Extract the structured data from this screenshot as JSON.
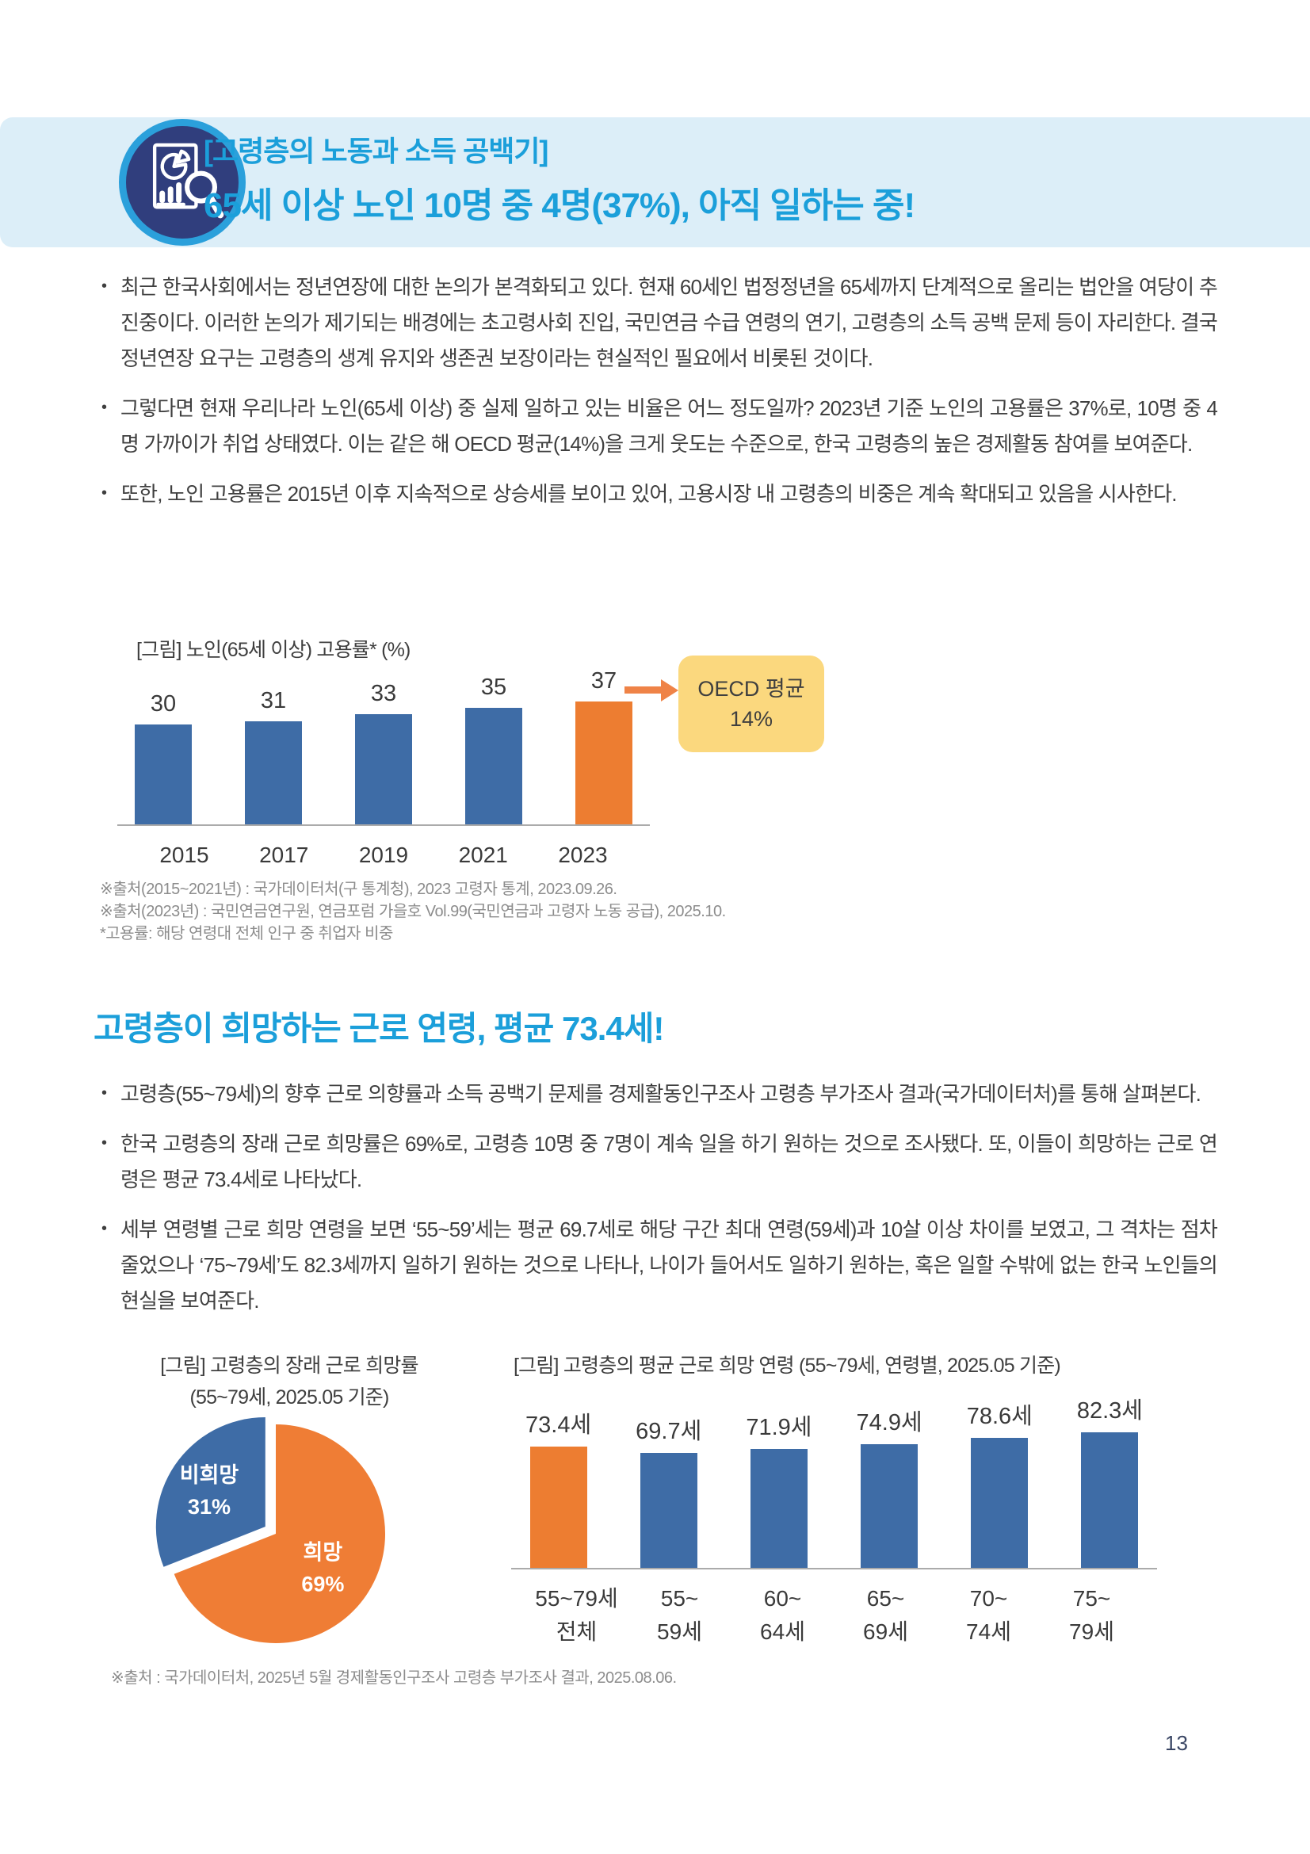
{
  "page": {
    "number": "13"
  },
  "header": {
    "icon": "report-analysis-icon",
    "title_line1": "[고령층의 노동과 소득 공백기]",
    "title_line2": "65세 이상 노인 10명 중 4명(37%), 아직 일하는 중!",
    "band_color": "#dceef8",
    "title_color": "#1b9fda"
  },
  "section1": {
    "bullets": [
      "최근 한국사회에서는 정년연장에 대한 논의가 본격화되고 있다. 현재 60세인 법정정년을 65세까지 단계적으로 올리는 법안을 여당이 추진중이다. 이러한 논의가 제기되는 배경에는 초고령사회 진입, 국민연금 수급 연령의 연기, 고령층의 소득 공백 문제 등이 자리한다. 결국 정년연장 요구는 고령층의 생계 유지와 생존권 보장이라는 현실적인 필요에서 비롯된 것이다.",
      "그렇다면 현재 우리나라 노인(65세 이상) 중 실제 일하고 있는 비율은 어느 정도일까? 2023년 기준 노인의 고용률은 37%로, 10명 중 4명 가까이가 취업 상태였다. 이는 같은 해 OECD 평균(14%)을 크게 웃도는 수준으로, 한국 고령층의 높은 경제활동 참여를 보여준다.",
      "또한, 노인 고용률은 2015년 이후 지속적으로 상승세를 보이고 있어, 고용시장 내 고령층의 비중은 계속 확대되고 있음을 시사한다."
    ],
    "chart_caption": "[그림] 노인(65세 이상) 고용률* (%)",
    "callout": {
      "line1": "OECD 평균",
      "line2": "14%"
    },
    "notes": [
      "※출처(2015~2021년) : 국가데이터처(구 통계청), 2023 고령자 통계, 2023.09.26.",
      "※출처(2023년) : 국민연금연구원, 연금포럼 가을호 Vol.99(국민연금과 고령자 노동 공급), 2025.10.",
      "*고용률: 해당 연령대 전체 인구 중 취업자 비중"
    ]
  },
  "section2": {
    "title": "고령층이 희망하는 근로 연령, 평균 73.4세!",
    "bullets": [
      "고령층(55~79세)의 향후 근로 의향률과 소득 공백기 문제를 경제활동인구조사 고령층 부가조사 결과(국가데이터처)를 통해 살펴본다.",
      "한국 고령층의 장래 근로 희망률은 69%로, 고령층 10명 중 7명이 계속 일을 하기 원하는 것으로 조사됐다. 또, 이들이 희망하는 근로 연령은 평균 73.4세로 나타났다.",
      "세부 연령별 근로 희망 연령을 보면 ‘55~59’세는 평균 69.7세로 해당 구간 최대 연령(59세)과 10살 이상 차이를 보였고, 그 격차는 점차 줄었으나 ‘75~79세’도 82.3세까지 일하기 원하는 것으로 나타나, 나이가 들어서도 일하기 원하는, 혹은 일할 수밖에 없는 한국 노인들의 현실을 보여준다."
    ],
    "pie_caption_line1": "[그림] 고령층의 장래 근로 희망률",
    "pie_caption_line2": "(55~79세, 2025.05 기준)",
    "bar_caption": "[그림] 고령층의 평균 근로 희망 연령 (55~79세, 연령별, 2025.05 기준)",
    "note": "※출처 : 국가데이터처, 2025년 5월 경제활동인구조사 고령층 부가조사 결과, 2025.08.06."
  },
  "chart_data": [
    {
      "id": "senior-employment-rate",
      "type": "bar",
      "title": "[그림] 노인(65세 이상) 고용률* (%)",
      "categories": [
        "2015",
        "2017",
        "2019",
        "2021",
        "2023"
      ],
      "values": [
        30,
        31,
        33,
        35,
        37
      ],
      "value_labels": [
        "30",
        "31",
        "33",
        "35",
        "37"
      ],
      "bar_colors": [
        "#3e6ca6",
        "#3e6ca6",
        "#3e6ca6",
        "#3e6ca6",
        "#ed7d31"
      ],
      "ylim": [
        0,
        40
      ],
      "grid": false,
      "annotation": "OECD 평균 14%"
    },
    {
      "id": "future-work-wish-share",
      "type": "pie",
      "title": "[그림] 고령층의 장래 근로 희망률 (55~79세, 2025.05 기준)",
      "slices": [
        {
          "label": "희망",
          "pct": "69%",
          "value": 69,
          "color": "#ef7d35",
          "exploded": false
        },
        {
          "label": "비희망",
          "pct": "31%",
          "value": 31,
          "color": "#3e6ca6",
          "exploded": true
        }
      ],
      "start_angle_deg": 0
    },
    {
      "id": "desired-work-age",
      "type": "bar",
      "title": "[그림] 고령층의 평균 근로 희망 연령 (55~79세, 연령별, 2025.05 기준)",
      "categories": [
        "55~79세 전체",
        "55~59세",
        "60~64세",
        "65~69세",
        "70~74세",
        "75~79세"
      ],
      "category_lines": [
        [
          "55~79세",
          "전체"
        ],
        [
          "55~",
          "59세"
        ],
        [
          "60~",
          "64세"
        ],
        [
          "65~",
          "69세"
        ],
        [
          "70~",
          "74세"
        ],
        [
          "75~",
          "79세"
        ]
      ],
      "values": [
        73.4,
        69.7,
        71.9,
        74.9,
        78.6,
        82.3
      ],
      "value_labels": [
        "73.4세",
        "69.7세",
        "71.9세",
        "74.9세",
        "78.6세",
        "82.3세"
      ],
      "bar_colors": [
        "#ed7d31",
        "#3e6ca6",
        "#3e6ca6",
        "#3e6ca6",
        "#3e6ca6",
        "#3e6ca6"
      ],
      "ylim": [
        0,
        85
      ],
      "grid": false
    }
  ]
}
